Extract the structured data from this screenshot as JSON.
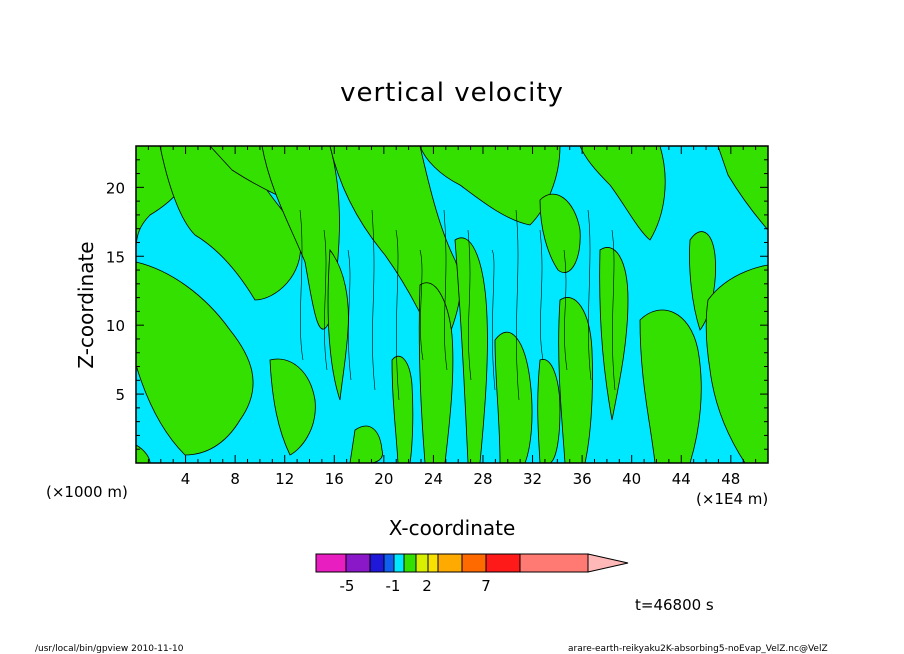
{
  "chart_data": {
    "type": "heatmap",
    "title": "vertical velocity",
    "xlabel": "X-coordinate",
    "ylabel": "Z-coordinate",
    "x_unit_left": "(×1000 m)",
    "x_unit_right": "(×1E4 m)",
    "xlim": [
      0,
      51
    ],
    "ylim": [
      0,
      23
    ],
    "x_ticks": [
      4,
      8,
      12,
      16,
      20,
      24,
      28,
      32,
      36,
      40,
      44,
      48
    ],
    "y_ticks": [
      5,
      10,
      15,
      20
    ],
    "time_label": "t=46800 s",
    "colorbar": {
      "tick_labels": [
        "-5",
        "-1",
        "2",
        "7"
      ],
      "colors": [
        "#e81ec0",
        "#8a18c8",
        "#2018d8",
        "#1060f0",
        "#00e8ff",
        "#33e000",
        "#d8f000",
        "#f8e000",
        "#ffaa00",
        "#ff6a00",
        "#ff1a1a",
        "#ff7a72",
        "#ffb8b8"
      ]
    },
    "dominant_colors": {
      "negative_weak": "#00e8ff",
      "positive_weak": "#33e000"
    }
  },
  "footer": {
    "left": "/usr/local/bin/gpview  2010-11-10",
    "right": "arare-earth-reikyaku2K-absorbing5-noEvap_VelZ.nc@VelZ"
  }
}
